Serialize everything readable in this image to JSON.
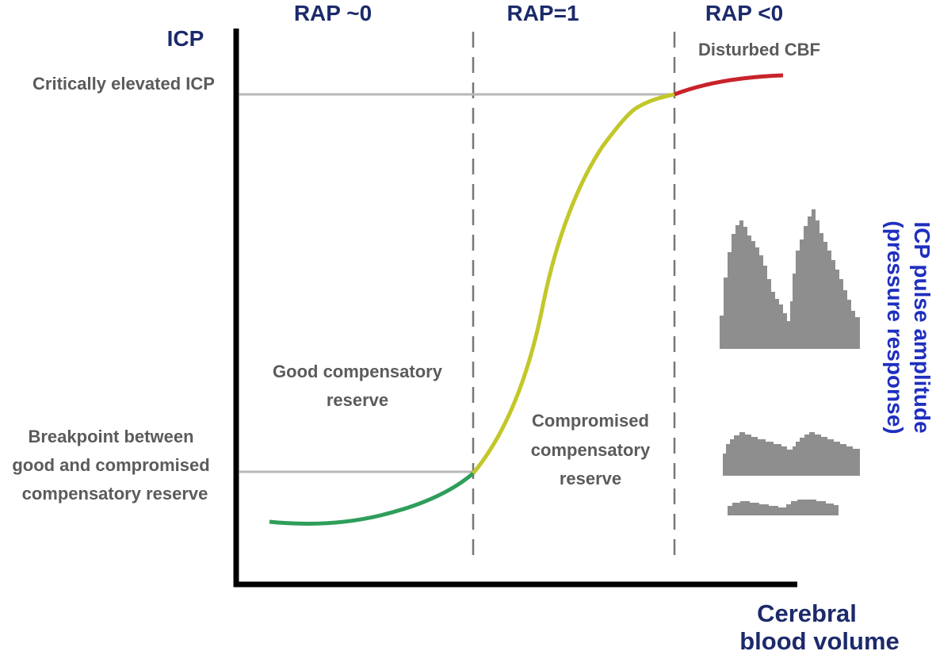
{
  "diagram": {
    "y_axis_label": "ICP",
    "x_axis_label_line1": "Cerebral",
    "x_axis_label_line2": "blood volume",
    "zones": [
      {
        "label": "RAP ~0"
      },
      {
        "label": "RAP=1"
      },
      {
        "label": "RAP <0"
      }
    ],
    "level_labels": {
      "critical": "Critically elevated ICP",
      "breakpoint_line1": "Breakpoint between",
      "breakpoint_line2": "good and compromised",
      "breakpoint_line3": "compensatory reserve"
    },
    "region_labels": {
      "good_line1": "Good compensatory",
      "good_line2": "reserve",
      "compromised_line1": "Compromised",
      "compromised_line2": "compensatory",
      "compromised_line3": "reserve",
      "disturbed": "Disturbed CBF"
    },
    "pulse_amplitude_label_line1": "ICP pulse amplitude",
    "pulse_amplitude_label_line2": "(pressure response)",
    "curve_segments": [
      {
        "name": "good",
        "color": "#2e9e5b"
      },
      {
        "name": "compromised",
        "color": "#c3c72a"
      },
      {
        "name": "disturbed",
        "color": "#c8232c"
      }
    ],
    "colors": {
      "axis": "#000000",
      "title_navy": "#1c2a6b",
      "text_grey": "#5b5b5b",
      "pulse_label_blue": "#1f2fc0",
      "waveform_grey": "#8e8e8e",
      "guide_line": "#b8b8b8",
      "divider": "#777777"
    }
  }
}
